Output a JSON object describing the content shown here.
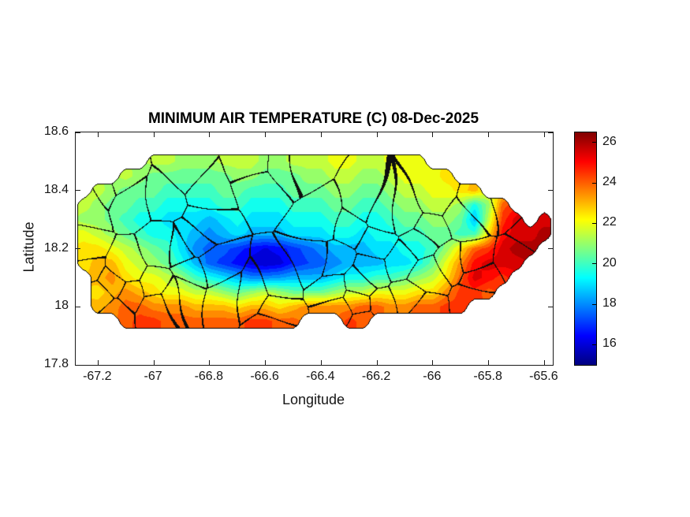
{
  "figure": {
    "title": "MINIMUM AIR TEMPERATURE (C) 08-Dec-2025"
  },
  "chart_data": {
    "type": "heatmap",
    "title": "MINIMUM AIR TEMPERATURE (C) 08-Dec-2025",
    "xlabel": "Longitude",
    "ylabel": "Latitude",
    "xlim": [
      -67.28,
      -65.57
    ],
    "ylim": [
      17.8,
      18.6
    ],
    "xticks": [
      -67.2,
      -67,
      -66.8,
      -66.6,
      -66.4,
      -66.2,
      -66,
      -65.8,
      -65.6
    ],
    "xtick_labels": [
      "-67.2",
      "-67",
      "-66.8",
      "-66.6",
      "-66.4",
      "-66.2",
      "-66",
      "-65.8",
      "-65.6"
    ],
    "yticks": [
      17.8,
      18,
      18.2,
      18.4,
      18.6
    ],
    "ytick_labels": [
      "17.8",
      "18",
      "18.2",
      "18.4",
      "18.6"
    ],
    "colormap": "jet",
    "clim": [
      15,
      26.5
    ],
    "colorbar_ticks": [
      16,
      18,
      20,
      22,
      24,
      26
    ],
    "colorbar_tick_labels": [
      "16",
      "18",
      "20",
      "22",
      "24",
      "26"
    ],
    "contour_step": 0.5,
    "boundary_color": "#000000",
    "grid": {
      "lon_start": -67.3,
      "lon_step": 0.05,
      "lat_start": 18.55,
      "lat_step": -0.05,
      "values": [
        [
          null,
          null,
          null,
          null,
          null,
          null,
          null,
          null,
          null,
          null,
          null,
          null,
          null,
          null,
          null,
          null,
          null,
          null,
          null,
          null,
          null,
          null,
          null,
          null,
          null,
          null,
          null,
          null,
          null,
          null,
          null,
          null,
          null,
          null,
          null,
          null
        ],
        [
          null,
          null,
          null,
          null,
          null,
          null,
          21.5,
          21.5,
          21,
          21,
          21,
          21.5,
          21.5,
          21.5,
          21,
          21,
          21.5,
          21.5,
          21.5,
          22,
          22,
          21.5,
          21.5,
          22,
          22,
          22,
          null,
          null,
          null,
          null,
          null,
          null,
          null,
          null,
          null,
          null
        ],
        [
          null,
          null,
          null,
          null,
          21.5,
          21,
          20.5,
          20.5,
          20.5,
          20.5,
          20.5,
          20.5,
          21,
          21,
          20.5,
          20.5,
          20.5,
          21,
          21,
          21.5,
          21.5,
          21,
          21,
          21.5,
          22,
          22,
          22,
          22.5,
          null,
          null,
          null,
          null,
          null,
          null,
          null,
          null
        ],
        [
          null,
          null,
          21.5,
          21,
          20.5,
          20.5,
          20.5,
          20,
          20,
          20,
          20,
          20.5,
          20.5,
          20,
          20,
          20,
          20.5,
          20.5,
          20.5,
          21,
          21,
          20.5,
          20.5,
          21,
          21.5,
          21.5,
          22,
          22,
          22.5,
          23,
          null,
          null,
          null,
          null,
          null,
          null
        ],
        [
          null,
          21.5,
          21,
          20.5,
          20.5,
          20,
          20,
          19.5,
          19.5,
          19.5,
          19.5,
          20,
          20,
          19.5,
          19.5,
          19.5,
          20,
          20,
          20,
          20.5,
          20.5,
          20,
          20,
          20.5,
          21,
          21,
          21.5,
          21.5,
          21,
          19.5,
          21,
          24,
          null,
          null,
          null,
          null
        ],
        [
          null,
          21,
          21,
          20.5,
          20,
          19.5,
          19.5,
          19,
          19,
          19,
          18.5,
          19,
          19.5,
          19,
          19,
          19,
          19.5,
          19.5,
          19.5,
          20,
          20,
          19.5,
          19.5,
          20,
          20.5,
          20.5,
          21,
          21,
          20.5,
          18.5,
          21.5,
          24.5,
          25.5,
          null,
          25.5,
          null
        ],
        [
          null,
          22,
          21.5,
          21,
          20.5,
          20,
          19.5,
          19.5,
          19,
          18.5,
          18,
          18.5,
          19,
          18.5,
          18.5,
          18.5,
          19,
          19,
          19,
          19.5,
          19.5,
          19,
          19.5,
          19.5,
          20,
          20,
          20.5,
          20.5,
          20,
          20,
          22.5,
          25,
          25.5,
          25.5,
          26,
          null
        ],
        [
          null,
          22.5,
          22.5,
          22,
          21.5,
          21,
          20.5,
          20,
          19,
          18,
          17.5,
          17.5,
          17,
          16.5,
          16.2,
          16.5,
          17,
          17.5,
          18,
          18.5,
          18.5,
          18.5,
          19,
          19,
          19.5,
          19.5,
          20,
          21,
          22.5,
          24,
          24.5,
          25.5,
          26,
          26,
          null,
          null
        ],
        [
          null,
          22.5,
          23,
          23,
          22,
          21.5,
          21,
          20.5,
          19.5,
          18.5,
          17.5,
          17,
          16.5,
          16,
          15.8,
          16,
          16.8,
          17.2,
          17.5,
          18,
          18.5,
          18.5,
          18.5,
          19,
          19,
          19.5,
          20.5,
          22,
          23.5,
          25,
          25.5,
          25.5,
          25.5,
          null,
          null,
          null
        ],
        [
          null,
          null,
          23,
          23.5,
          22.5,
          22,
          22,
          21.5,
          21,
          20,
          19.5,
          19,
          18.5,
          18,
          18,
          18.2,
          18.5,
          18.5,
          18.5,
          19,
          19.5,
          19.5,
          20,
          20,
          20.5,
          21,
          21.5,
          22.5,
          24,
          25.5,
          25,
          24.5,
          null,
          null,
          null,
          null
        ],
        [
          null,
          null,
          22.5,
          23,
          23.5,
          23,
          22.5,
          22,
          22,
          21.5,
          21.5,
          21,
          20.5,
          21,
          21.5,
          21,
          20.5,
          20.5,
          20.5,
          21,
          21.5,
          21.5,
          22,
          22,
          22,
          22.5,
          22.5,
          23.5,
          24.5,
          24.5,
          24,
          null,
          null,
          null,
          null,
          null
        ],
        [
          null,
          null,
          23,
          23.5,
          24,
          24,
          23.5,
          23.5,
          23.5,
          23,
          23,
          23,
          22.5,
          23,
          23,
          22.5,
          23,
          23.5,
          23.5,
          23.5,
          23.5,
          24,
          24,
          23.5,
          23.5,
          24,
          24,
          24.5,
          24.5,
          null,
          null,
          null,
          null,
          null,
          null,
          null
        ],
        [
          null,
          null,
          null,
          null,
          24,
          24.5,
          24.5,
          24,
          24,
          24,
          24,
          24,
          24,
          24.5,
          24.5,
          24,
          24,
          null,
          null,
          null,
          24.5,
          24,
          null,
          null,
          null,
          null,
          null,
          null,
          null,
          null,
          null,
          null,
          null,
          null,
          null,
          null
        ],
        [
          null,
          null,
          null,
          null,
          null,
          null,
          null,
          null,
          null,
          null,
          null,
          null,
          null,
          null,
          null,
          null,
          null,
          null,
          null,
          null,
          null,
          null,
          null,
          null,
          null,
          null,
          null,
          null,
          null,
          null,
          null,
          null,
          null,
          null,
          null,
          null
        ]
      ]
    }
  }
}
